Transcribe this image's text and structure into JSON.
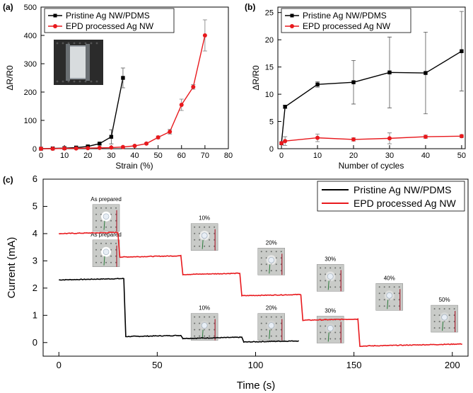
{
  "chart_data": [
    {
      "panel": "(a)",
      "type": "line",
      "xlabel": "Strain (%)",
      "ylabel": "ΔR/R0",
      "xlim": [
        0,
        80
      ],
      "ylim": [
        0,
        500
      ],
      "xticks": [
        0,
        10,
        20,
        30,
        40,
        50,
        60,
        70,
        80
      ],
      "yticks": [
        0,
        100,
        200,
        300,
        400,
        500
      ],
      "legend": "top-left",
      "series": [
        {
          "name": "Pristine Ag NW/PDMS",
          "color": "#000000",
          "x": [
            0,
            5,
            10,
            15,
            20,
            25,
            30,
            35
          ],
          "y": [
            0,
            1,
            2,
            4,
            8,
            18,
            42,
            250
          ],
          "err": [
            0,
            0,
            0,
            1,
            2,
            4,
            25,
            35
          ]
        },
        {
          "name": "EPD processed Ag NW",
          "color": "#e8191d",
          "x": [
            0,
            5,
            10,
            15,
            20,
            25,
            30,
            35,
            40,
            45,
            50,
            55,
            60,
            65,
            70
          ],
          "y": [
            0,
            0,
            1,
            1,
            2,
            3,
            4,
            6,
            10,
            18,
            40,
            60,
            155,
            218,
            400
          ],
          "err": [
            0,
            0,
            0,
            0,
            0,
            0,
            0,
            1,
            2,
            3,
            5,
            8,
            20,
            8,
            55
          ]
        }
      ]
    },
    {
      "panel": "(b)",
      "type": "line",
      "xlabel": "Number of cycles",
      "ylabel": "ΔR/R0",
      "xlim": [
        -1,
        51
      ],
      "ylim": [
        0,
        26
      ],
      "xticks": [
        0,
        10,
        20,
        30,
        40,
        50
      ],
      "yticks": [
        0,
        5,
        10,
        15,
        20,
        25
      ],
      "legend": "top-left",
      "series": [
        {
          "name": "Pristine Ag NW/PDMS",
          "color": "#000000",
          "x": [
            0,
            1,
            10,
            20,
            30,
            40,
            50
          ],
          "y": [
            1.0,
            7.7,
            11.8,
            12.2,
            14.0,
            13.9,
            17.9
          ],
          "err": [
            0,
            0.3,
            0.5,
            4.0,
            6.5,
            7.5,
            7.3
          ]
        },
        {
          "name": "EPD processed Ag NW",
          "color": "#e8191d",
          "x": [
            0,
            1,
            10,
            20,
            30,
            40,
            50
          ],
          "y": [
            1.0,
            1.4,
            2.0,
            1.7,
            1.9,
            2.2,
            2.3
          ],
          "err": [
            0,
            0.8,
            0.7,
            0.3,
            1.0,
            0.3,
            0.3
          ]
        }
      ]
    },
    {
      "panel": "(c)",
      "type": "line",
      "xlabel": "Time (s)",
      "ylabel": "Current (mA)",
      "xlim": [
        -8,
        208
      ],
      "ylim": [
        -0.5,
        6
      ],
      "xticks": [
        0,
        50,
        100,
        150,
        200
      ],
      "yticks": [
        0,
        1,
        2,
        3,
        4,
        5,
        6
      ],
      "legend": "top-right",
      "series": [
        {
          "name": "Pristine Ag NW/PDMS",
          "color": "#000000",
          "steps": [
            [
              0,
              33,
              2.3
            ],
            [
              34,
              62,
              0.22
            ],
            [
              63,
              93,
              0.15
            ],
            [
              94,
              122,
              0.02
            ]
          ]
        },
        {
          "name": "EPD processed Ag NW",
          "color": "#e8191d",
          "steps": [
            [
              0,
              30,
              4.0
            ],
            [
              31,
              62,
              3.14
            ],
            [
              63,
              92,
              2.5
            ],
            [
              93,
              123,
              1.72
            ],
            [
              124,
              152,
              0.82
            ],
            [
              153,
              205,
              -0.13
            ]
          ]
        }
      ],
      "photo_labels": [
        {
          "text": "As prepared",
          "t": 24,
          "i": 5.2
        },
        {
          "text": "As prepared",
          "t": 24,
          "i": 3.9
        },
        {
          "text": "10%",
          "t": 74,
          "i": 4.5
        },
        {
          "text": "20%",
          "t": 108,
          "i": 3.6
        },
        {
          "text": "30%",
          "t": 138,
          "i": 3.0
        },
        {
          "text": "40%",
          "t": 168,
          "i": 2.3
        },
        {
          "text": "50%",
          "t": 196,
          "i": 1.5
        },
        {
          "text": "10%",
          "t": 74,
          "i": 1.2
        },
        {
          "text": "20%",
          "t": 108,
          "i": 1.2
        },
        {
          "text": "30%",
          "t": 138,
          "i": 1.1
        }
      ]
    }
  ]
}
